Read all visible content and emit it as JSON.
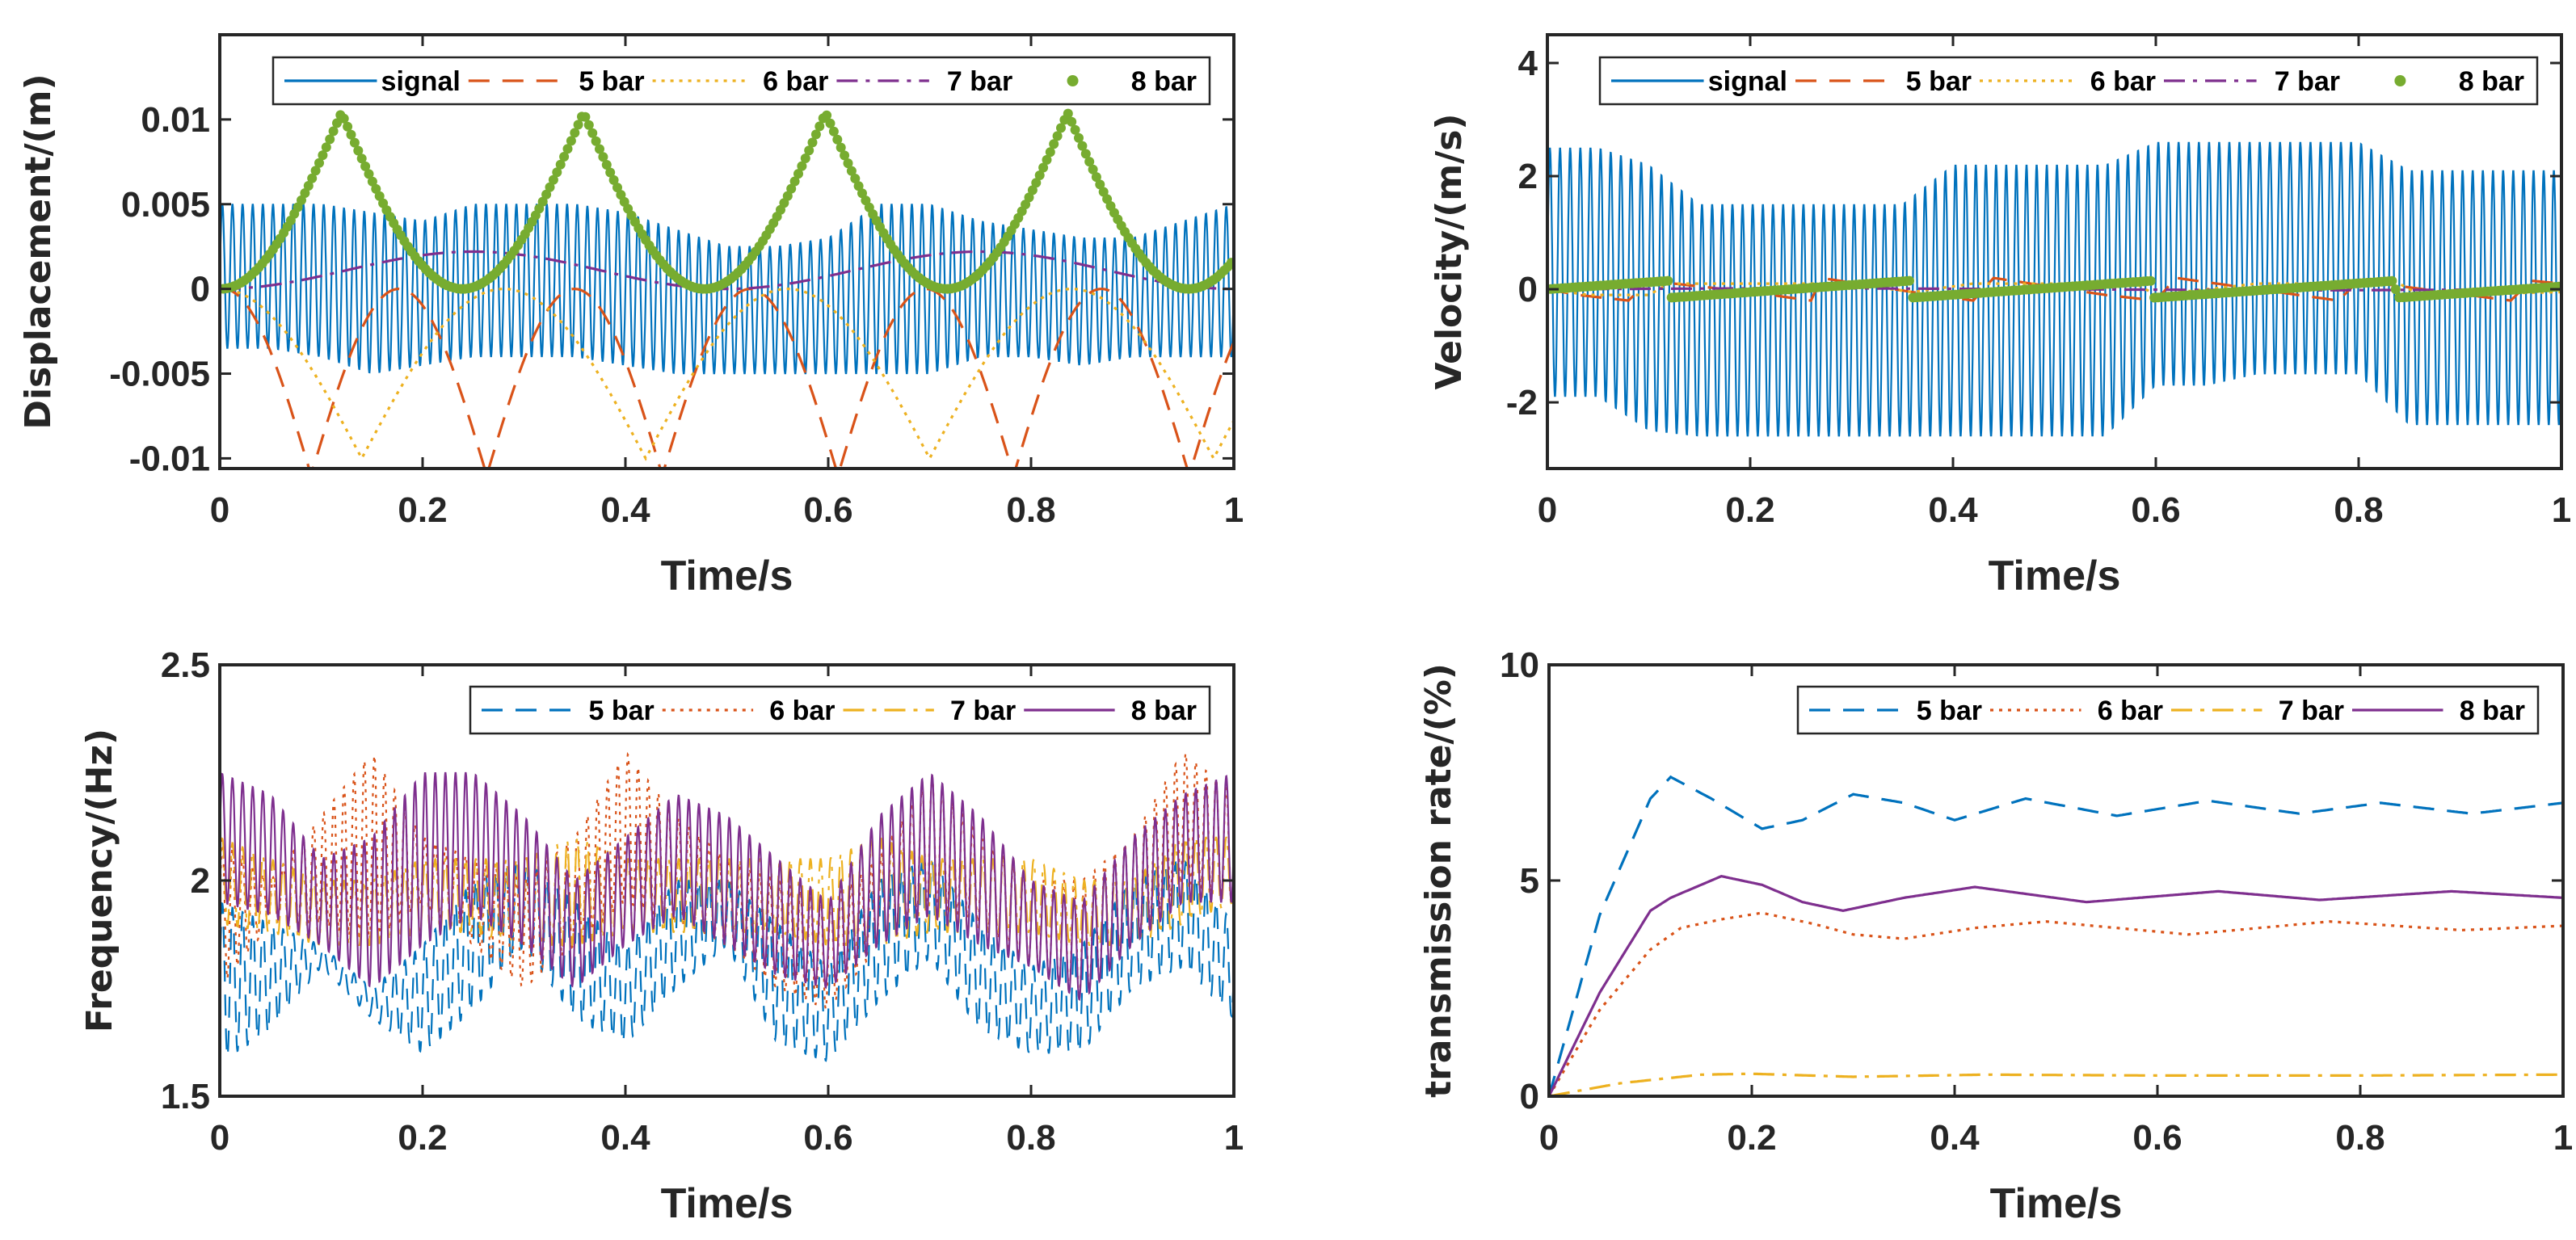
{
  "chart_data": [
    {
      "id": "displacement",
      "type": "line",
      "xlabel": "Time/s",
      "ylabel": "Displacement/(m)",
      "xlim": [
        0,
        1
      ],
      "ylim": [
        -0.0106,
        0.015
      ],
      "xticks": [
        0,
        0.2,
        0.4,
        0.6,
        0.8,
        1
      ],
      "xtick_labels": [
        "0",
        "0.2",
        "0.4",
        "0.6",
        "0.8",
        "1"
      ],
      "yticks": [
        -0.01,
        -0.005,
        0,
        0.005,
        0.01
      ],
      "ytick_labels": [
        "-0.01",
        "-0.005",
        "0",
        "0.005",
        "0.01"
      ],
      "grid": false,
      "legend_position": "top",
      "series": [
        {
          "name": "signal",
          "color": "#0072BD",
          "style": "solid",
          "kind": "oscillation",
          "carrier_hz": 100,
          "x": [
            0,
            0.05,
            0.1,
            0.15,
            0.2,
            0.25,
            0.3,
            0.35,
            0.4,
            0.45,
            0.5,
            0.55,
            0.6,
            0.65,
            0.7,
            0.75,
            0.8,
            0.85,
            0.9,
            0.95,
            1
          ],
          "upper": [
            0.005,
            0.005,
            0.005,
            0.0045,
            0.004,
            0.005,
            0.005,
            0.005,
            0.0045,
            0.0035,
            0.0025,
            0.0025,
            0.003,
            0.005,
            0.005,
            0.004,
            0.0035,
            0.003,
            0.003,
            0.004,
            0.005
          ],
          "lower": [
            -0.0035,
            -0.0035,
            -0.004,
            -0.005,
            -0.0045,
            -0.004,
            -0.004,
            -0.004,
            -0.0045,
            -0.005,
            -0.005,
            -0.005,
            -0.005,
            -0.005,
            -0.005,
            -0.004,
            -0.004,
            -0.0045,
            -0.004,
            -0.004,
            -0.004
          ]
        },
        {
          "name": "5 bar",
          "color": "#D95319",
          "style": "dashed",
          "kind": "abs_sine_trough",
          "amplitude": 0.011,
          "period": 0.1732,
          "trough_at": 0.09
        },
        {
          "name": "6 bar",
          "color": "#EDB120",
          "style": "dotted",
          "kind": "abs_sine_trough",
          "amplitude": 0.01,
          "period": 0.28,
          "trough_at": 0.14
        },
        {
          "name": "7 bar",
          "color": "#7E2F8E",
          "style": "dashdot",
          "kind": "sine_squared",
          "amplitude": 0.0022,
          "period": 0.5
        },
        {
          "name": "8 bar",
          "color": "#77AC30",
          "style": "marker",
          "kind": "abs_sine_peak",
          "amplitude": 0.0104,
          "period": 0.2387,
          "peak_at": 0.12
        }
      ]
    },
    {
      "id": "velocity",
      "type": "line",
      "xlabel": "Time/s",
      "ylabel": "Velocity/(m/s)",
      "xlim": [
        0,
        1
      ],
      "ylim": [
        -3.17,
        4.5
      ],
      "xticks": [
        0,
        0.2,
        0.4,
        0.6,
        0.8,
        1
      ],
      "xtick_labels": [
        "0",
        "0.2",
        "0.4",
        "0.6",
        "0.8",
        "1"
      ],
      "yticks": [
        -2,
        0,
        2,
        4
      ],
      "ytick_labels": [
        "-2",
        "0",
        "2",
        "4"
      ],
      "grid": false,
      "legend_position": "top",
      "series": [
        {
          "name": "signal",
          "color": "#0072BD",
          "style": "solid",
          "kind": "oscillation",
          "carrier_hz": 100,
          "x": [
            0,
            0.05,
            0.1,
            0.15,
            0.2,
            0.25,
            0.3,
            0.35,
            0.4,
            0.45,
            0.5,
            0.55,
            0.6,
            0.65,
            0.7,
            0.75,
            0.8,
            0.85,
            0.9,
            0.95,
            1
          ],
          "upper": [
            2.5,
            2.5,
            2.2,
            1.5,
            1.5,
            1.5,
            1.5,
            1.5,
            2.2,
            2.2,
            2.2,
            2.2,
            2.6,
            2.6,
            2.6,
            2.6,
            2.6,
            2.1,
            2.1,
            2.1,
            2.1
          ],
          "lower": [
            -1.9,
            -1.9,
            -2.5,
            -2.6,
            -2.6,
            -2.6,
            -2.6,
            -2.6,
            -2.6,
            -2.6,
            -2.6,
            -2.6,
            -1.7,
            -1.7,
            -1.5,
            -1.5,
            -1.5,
            -2.4,
            -2.4,
            -2.4,
            -2.4
          ]
        },
        {
          "name": "5 bar",
          "color": "#D95319",
          "style": "dashed",
          "kind": "points",
          "x": [
            0,
            0.03,
            0.08,
            0.1,
            0.2,
            0.26,
            0.27,
            0.36,
            0.42,
            0.44,
            0.55,
            0.6,
            0.62,
            0.78,
            0.8,
            0.95,
            0.97,
            1
          ],
          "y": [
            0,
            -0.1,
            -0.2,
            0.15,
            -0.05,
            -0.2,
            0.2,
            -0.05,
            -0.2,
            0.2,
            -0.1,
            -0.2,
            0.2,
            -0.2,
            0.15,
            -0.2,
            0.15,
            0.1
          ]
        },
        {
          "name": "6 bar",
          "color": "#EDB120",
          "style": "dotted",
          "kind": "points",
          "x": [
            0,
            0.04,
            0.1,
            0.12,
            0.3,
            0.36,
            0.42,
            0.58,
            0.6,
            0.7,
            0.84,
            0.86,
            1
          ],
          "y": [
            0,
            -0.1,
            -0.1,
            0.1,
            0.1,
            -0.05,
            0.1,
            0.1,
            -0.1,
            0.1,
            0.1,
            -0.1,
            -0.05
          ]
        },
        {
          "name": "7 bar",
          "color": "#7E2F8E",
          "style": "dashdot",
          "kind": "points",
          "x": [
            0,
            0.25,
            0.5,
            0.75,
            1
          ],
          "y": [
            0,
            0.02,
            0,
            -0.02,
            0
          ]
        },
        {
          "name": "8 bar",
          "color": "#77AC30",
          "style": "marker",
          "kind": "points",
          "x": [
            0,
            0.12,
            0.121,
            0.358,
            0.359,
            0.597,
            0.598,
            0.836,
            0.837,
            1
          ],
          "y": [
            0,
            0.15,
            -0.15,
            0.15,
            -0.15,
            0.15,
            -0.15,
            0.15,
            -0.15,
            0.05
          ]
        }
      ]
    },
    {
      "id": "frequency",
      "type": "line",
      "xlabel": "Time/s",
      "ylabel": "Frequency/(Hz)",
      "xlim": [
        0,
        1
      ],
      "ylim": [
        1.5,
        2.5
      ],
      "xticks": [
        0,
        0.2,
        0.4,
        0.6,
        0.8,
        1
      ],
      "xtick_labels": [
        "0",
        "0.2",
        "0.4",
        "0.6",
        "0.8",
        "1"
      ],
      "yticks": [
        1.5,
        2,
        2.5
      ],
      "ytick_labels": [
        "1.5",
        "2",
        "2.5"
      ],
      "grid": false,
      "legend_position": "top-right",
      "series": [
        {
          "name": "5 bar",
          "color": "#0072BD",
          "style": "dashed",
          "kind": "oscillation",
          "carrier_hz": 100,
          "x": [
            0,
            0.05,
            0.1,
            0.15,
            0.2,
            0.25,
            0.3,
            0.35,
            0.4,
            0.45,
            0.5,
            0.55,
            0.6,
            0.65,
            0.7,
            0.75,
            0.8,
            0.85,
            0.9,
            0.95,
            1
          ],
          "upper": [
            1.95,
            1.9,
            1.85,
            1.75,
            1.85,
            2.0,
            2.05,
            1.95,
            1.85,
            2.0,
            2.0,
            1.9,
            1.8,
            2.0,
            2.05,
            1.9,
            1.8,
            1.85,
            2.0,
            2.05,
            1.9
          ],
          "lower": [
            1.58,
            1.65,
            1.8,
            1.68,
            1.6,
            1.7,
            1.85,
            1.68,
            1.62,
            1.75,
            1.85,
            1.62,
            1.58,
            1.72,
            1.82,
            1.65,
            1.6,
            1.6,
            1.75,
            1.8,
            1.68
          ]
        },
        {
          "name": "6 bar",
          "color": "#D95319",
          "style": "dotted",
          "kind": "oscillation",
          "carrier_hz": 100,
          "x": [
            0,
            0.05,
            0.1,
            0.15,
            0.2,
            0.25,
            0.3,
            0.35,
            0.4,
            0.45,
            0.5,
            0.55,
            0.6,
            0.65,
            0.7,
            0.75,
            0.8,
            0.85,
            0.9,
            0.95,
            1
          ],
          "upper": [
            2.1,
            2.0,
            2.15,
            2.3,
            2.1,
            2.05,
            2.0,
            2.1,
            2.3,
            2.15,
            2.05,
            2.0,
            1.95,
            2.05,
            2.25,
            2.1,
            2.0,
            2.0,
            2.1,
            2.3,
            2.2
          ],
          "lower": [
            1.75,
            1.9,
            1.9,
            1.85,
            1.95,
            1.85,
            1.75,
            1.85,
            1.95,
            1.9,
            1.85,
            1.75,
            1.7,
            1.85,
            1.95,
            1.9,
            1.8,
            1.72,
            1.85,
            2.0,
            1.95
          ]
        },
        {
          "name": "7 bar",
          "color": "#EDB120",
          "style": "dashdot",
          "kind": "oscillation",
          "carrier_hz": 100,
          "x": [
            0,
            0.05,
            0.1,
            0.15,
            0.2,
            0.25,
            0.3,
            0.35,
            0.4,
            0.45,
            0.5,
            0.55,
            0.6,
            0.65,
            0.7,
            0.75,
            0.8,
            0.85,
            0.9,
            0.95,
            1
          ],
          "upper": [
            2.1,
            2.05,
            2.0,
            2.0,
            2.05,
            2.05,
            2.05,
            2.1,
            2.05,
            2.05,
            2.05,
            2.05,
            2.05,
            2.1,
            2.05,
            2.05,
            2.05,
            2.0,
            2.0,
            2.1,
            2.1
          ],
          "lower": [
            1.9,
            1.88,
            1.85,
            1.85,
            1.88,
            1.88,
            1.85,
            1.85,
            1.88,
            1.88,
            1.88,
            1.88,
            1.85,
            1.85,
            1.88,
            1.88,
            1.88,
            1.85,
            1.85,
            1.9,
            1.95
          ]
        },
        {
          "name": "8 bar",
          "color": "#7E2F8E",
          "style": "solid",
          "kind": "oscillation",
          "carrier_hz": 100,
          "x": [
            0,
            0.05,
            0.1,
            0.15,
            0.2,
            0.25,
            0.3,
            0.35,
            0.4,
            0.45,
            0.5,
            0.55,
            0.6,
            0.65,
            0.7,
            0.75,
            0.8,
            0.85,
            0.9,
            0.95,
            1
          ],
          "upper": [
            2.25,
            2.2,
            2.05,
            2.1,
            2.25,
            2.25,
            2.15,
            2.0,
            2.1,
            2.2,
            2.15,
            2.05,
            1.95,
            2.15,
            2.25,
            2.15,
            2.0,
            1.95,
            2.1,
            2.2,
            2.25
          ],
          "lower": [
            1.95,
            1.92,
            1.85,
            1.75,
            1.85,
            1.92,
            1.85,
            1.75,
            1.85,
            1.92,
            1.85,
            1.78,
            1.75,
            1.85,
            1.92,
            1.85,
            1.8,
            1.72,
            1.85,
            1.95,
            1.95
          ]
        }
      ]
    },
    {
      "id": "transmission",
      "type": "line",
      "xlabel": "Time/s",
      "ylabel": "transmission rate/(%)",
      "xlim": [
        0,
        1
      ],
      "ylim": [
        0,
        10
      ],
      "xticks": [
        0,
        0.2,
        0.4,
        0.6,
        0.8,
        1
      ],
      "xtick_labels": [
        "0",
        "0.2",
        "0.4",
        "0.6",
        "0.8",
        "1"
      ],
      "yticks": [
        0,
        5,
        10
      ],
      "ytick_labels": [
        "0",
        "5",
        "10"
      ],
      "grid": false,
      "legend_position": "top-right",
      "series": [
        {
          "name": "5 bar",
          "color": "#0072BD",
          "style": "dashed",
          "kind": "points",
          "x": [
            0,
            0.05,
            0.1,
            0.12,
            0.16,
            0.21,
            0.25,
            0.3,
            0.35,
            0.4,
            0.47,
            0.56,
            0.65,
            0.74,
            0.82,
            0.91,
            1
          ],
          "y": [
            0,
            4.2,
            6.9,
            7.4,
            6.9,
            6.2,
            6.4,
            7.0,
            6.8,
            6.4,
            6.9,
            6.5,
            6.85,
            6.55,
            6.8,
            6.55,
            6.8
          ]
        },
        {
          "name": "6 bar",
          "color": "#D95319",
          "style": "dotted",
          "kind": "points",
          "x": [
            0,
            0.05,
            0.1,
            0.13,
            0.17,
            0.21,
            0.26,
            0.3,
            0.35,
            0.42,
            0.49,
            0.56,
            0.63,
            0.77,
            0.9,
            1
          ],
          "y": [
            0,
            2.0,
            3.4,
            3.9,
            4.1,
            4.25,
            4.0,
            3.75,
            3.65,
            3.9,
            4.05,
            3.9,
            3.75,
            4.05,
            3.85,
            3.95
          ]
        },
        {
          "name": "7 bar",
          "color": "#EDB120",
          "style": "dashdot",
          "kind": "points",
          "x": [
            0,
            0.07,
            0.15,
            0.2,
            0.3,
            0.43,
            0.6,
            0.8,
            1
          ],
          "y": [
            0,
            0.3,
            0.5,
            0.52,
            0.45,
            0.5,
            0.48,
            0.48,
            0.5
          ]
        },
        {
          "name": "8 bar",
          "color": "#7E2F8E",
          "style": "solid",
          "kind": "points",
          "x": [
            0,
            0.05,
            0.1,
            0.12,
            0.17,
            0.21,
            0.25,
            0.29,
            0.35,
            0.42,
            0.53,
            0.66,
            0.76,
            0.89,
            1
          ],
          "y": [
            0,
            2.4,
            4.3,
            4.6,
            5.1,
            4.9,
            4.5,
            4.3,
            4.6,
            4.85,
            4.5,
            4.75,
            4.55,
            4.75,
            4.6
          ]
        }
      ]
    }
  ]
}
